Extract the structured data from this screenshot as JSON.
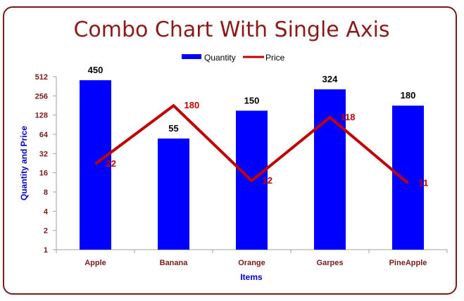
{
  "chart_data": {
    "type": "bar",
    "title": "Combo Chart With Single Axis",
    "xlabel": "Items",
    "ylabel": "Quantity and Price",
    "y_scale": "log2",
    "ylim": [
      1,
      512
    ],
    "y_ticks": [
      "1",
      "2",
      "4",
      "8",
      "16",
      "32",
      "64",
      "128",
      "256",
      "512"
    ],
    "categories": [
      "Apple",
      "Banana",
      "Orange",
      "Garpes",
      "PineApple"
    ],
    "series": [
      {
        "name": "Quantity",
        "type": "bar",
        "values": [
          450,
          55,
          150,
          324,
          180
        ]
      },
      {
        "name": "Price",
        "type": "line",
        "values": [
          22,
          180,
          12,
          118,
          11
        ]
      }
    ],
    "legend_position": "top"
  },
  "colors": {
    "title": "#8b1a1a",
    "bar": "#0000ff",
    "line": "#c00000",
    "axis_text": "#7b1a1a",
    "axis_title": "#0000cc",
    "frame": "#7b1a1a"
  }
}
